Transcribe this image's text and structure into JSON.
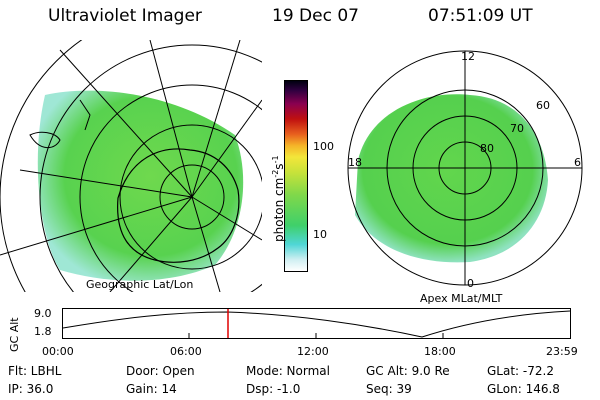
{
  "header": {
    "instrument": "Ultraviolet Imager",
    "date": "19 Dec 07",
    "time": "07:51:09 UT"
  },
  "left_panel": {
    "caption": "Geographic Lat/Lon"
  },
  "right_panel": {
    "caption": "Apex MLat/MLT",
    "mlt_labels": [
      "12",
      "18",
      "6",
      "0"
    ],
    "mlat_labels": [
      "60",
      "70",
      "80"
    ]
  },
  "colorbar": {
    "unit_label": "photon cm",
    "unit_sup1": "-2",
    "unit_s": "s",
    "unit_sup2": "-1",
    "ticks": [
      "100",
      "10"
    ]
  },
  "timeline": {
    "ylabel": "GC Alt",
    "yticks": [
      "9.0",
      "1.8"
    ],
    "xticks": [
      "00:00",
      "06:00",
      "12:00",
      "18:00",
      "23:59"
    ],
    "current_marker_time": "07:51:09"
  },
  "info": {
    "flt": "Flt: LBHL",
    "ip": "IP: 36.0",
    "door": "Door: Open",
    "gain": "Gain: 14",
    "mode": "Mode: Normal",
    "dsp": "Dsp:    -1.0",
    "gcalt": "GC Alt: 9.0 Re",
    "seq": "Seq: 39",
    "glat": "GLat: -72.2",
    "glon": "GLon: 146.8"
  },
  "colors": {
    "aurora_green": "#5bd64a",
    "aurora_light": "#a8e890",
    "aurora_cyan": "#7fe0d8",
    "marker_red": "#e00000"
  }
}
